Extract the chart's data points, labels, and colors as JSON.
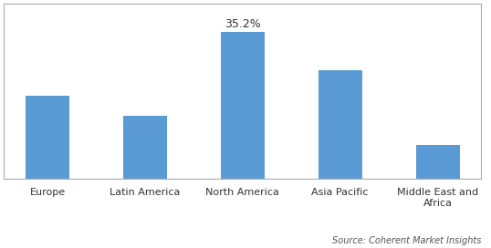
{
  "categories": [
    "Europe",
    "Latin America",
    "North America",
    "Asia Pacific",
    "Middle East and\nAfrica"
  ],
  "values": [
    20.0,
    15.0,
    35.2,
    26.0,
    8.0
  ],
  "bar_color": "#5B9BD5",
  "annotation_label": "35.2%",
  "annotation_index": 2,
  "source_text": "Source: Coherent Market Insights",
  "ylim": [
    0,
    42
  ],
  "bar_width": 0.45,
  "background_color": "#ffffff",
  "spine_color": "#aaaaaa",
  "tick_label_fontsize": 8,
  "annotation_fontsize": 9,
  "source_fontsize": 7
}
